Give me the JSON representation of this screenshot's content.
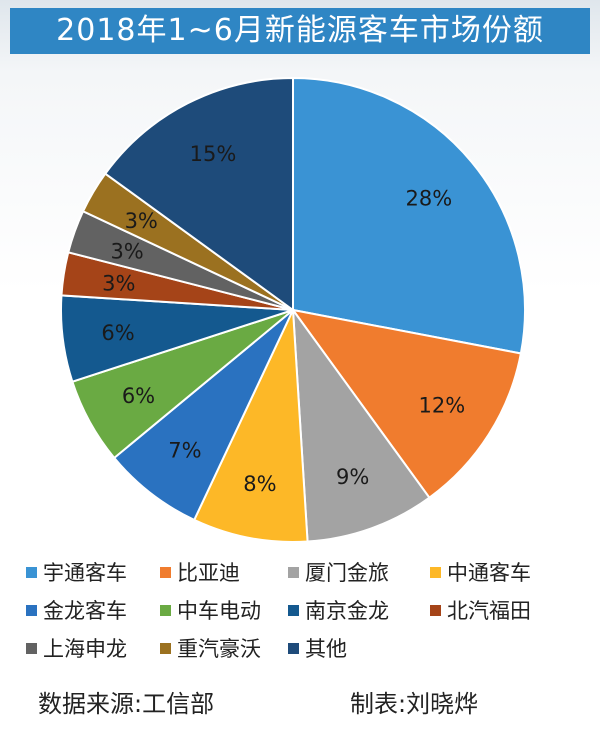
{
  "header": {
    "title": "2018年1~6月新能源客车市场份额"
  },
  "chart_data": {
    "type": "pie",
    "title": "2018年1~6月新能源客车市场份额",
    "slices": [
      {
        "name": "宇通客车",
        "value": 28,
        "label": "28%",
        "color": "#3a93d4"
      },
      {
        "name": "比亚迪",
        "value": 12,
        "label": "12%",
        "color": "#f07c2e"
      },
      {
        "name": "厦门金旅",
        "value": 9,
        "label": "9%",
        "color": "#a3a3a3"
      },
      {
        "name": "中通客车",
        "value": 8,
        "label": "8%",
        "color": "#fdb827"
      },
      {
        "name": "金龙客车",
        "value": 7,
        "label": "7%",
        "color": "#2a72c0"
      },
      {
        "name": "中车电动",
        "value": 6,
        "label": "6%",
        "color": "#6aaa43"
      },
      {
        "name": "南京金龙",
        "value": 6,
        "label": "6%",
        "color": "#14598f"
      },
      {
        "name": "北汽福田",
        "value": 3,
        "label": "3%",
        "color": "#a54418"
      },
      {
        "name": "上海申龙",
        "value": 3,
        "label": "3%",
        "color": "#626262"
      },
      {
        "name": "重汽豪沃",
        "value": 3,
        "label": "3%",
        "color": "#9b7120"
      },
      {
        "name": "其他",
        "value": 15,
        "label": "15%",
        "color": "#1e4b7a"
      }
    ],
    "legend_position": "bottom"
  },
  "footer": {
    "source": "数据来源:工信部",
    "author": "制表:刘晓烨"
  }
}
